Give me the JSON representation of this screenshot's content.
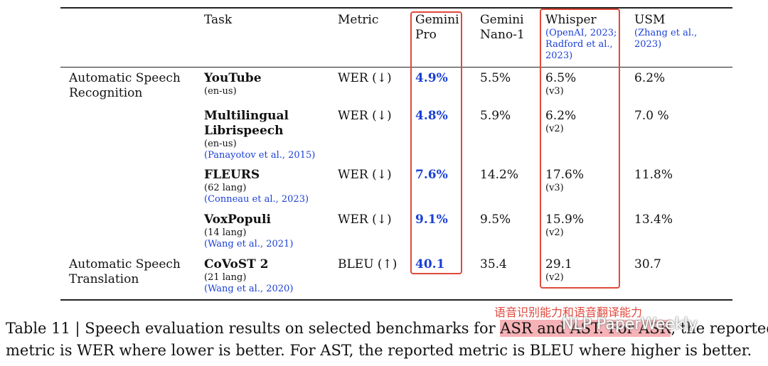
{
  "header": {
    "task": "Task",
    "metric": "Metric",
    "gemini_pro": [
      "Gemini",
      "Pro"
    ],
    "gemini_nano": [
      "Gemini",
      "Nano-1"
    ],
    "whisper": "Whisper",
    "whisper_cite": [
      "(OpenAI, 2023;",
      "Radford et al.,",
      "2023)"
    ],
    "usm": "USM",
    "usm_cite": [
      "(Zhang et al.,",
      "2023)"
    ]
  },
  "groups": [
    {
      "label": [
        "Automatic Speech",
        "Recognition"
      ]
    },
    {
      "label": [
        "Automatic Speech",
        "Translation"
      ]
    }
  ],
  "rows": [
    {
      "task": [
        "YouTube"
      ],
      "sub": "(en-us)",
      "cite": "",
      "metric": "WER (↓)",
      "gemini_pro": "4.9%",
      "gemini_nano": "5.5%",
      "whisper": "6.5%",
      "whisper_ver": "(v3)",
      "usm": "6.2%"
    },
    {
      "task": [
        "Multilingual",
        "Librispeech"
      ],
      "sub": "(en-us)",
      "cite": "(Panayotov et al., 2015)",
      "metric": "WER (↓)",
      "gemini_pro": "4.8%",
      "gemini_nano": "5.9%",
      "whisper": "6.2%",
      "whisper_ver": "(v2)",
      "usm": "7.0 %"
    },
    {
      "task": [
        "FLEURS"
      ],
      "sub": "(62 lang)",
      "cite": "(Conneau et al., 2023)",
      "metric": "WER (↓)",
      "gemini_pro": "7.6%",
      "gemini_nano": "14.2%",
      "whisper": "17.6%",
      "whisper_ver": "(v3)",
      "usm": "11.8%"
    },
    {
      "task": [
        "VoxPopuli"
      ],
      "sub": "(14 lang)",
      "cite": "(Wang et al., 2021)",
      "metric": "WER (↓)",
      "gemini_pro": "9.1%",
      "gemini_nano": "9.5%",
      "whisper": "15.9%",
      "whisper_ver": "(v2)",
      "usm": "13.4%"
    },
    {
      "task": [
        "CoVoST 2"
      ],
      "sub": "(21 lang)",
      "cite": "(Wang et al., 2020)",
      "metric": "BLEU (↑)",
      "gemini_pro": "40.1",
      "gemini_nano": "35.4",
      "whisper": "29.1",
      "whisper_ver": "(v2)",
      "usm": "30.7"
    }
  ],
  "caption": {
    "line1_a": "Table 11 | Speech evaluation results on selected benchmarks for ",
    "line1_hl": "ASR and AST. For ASR",
    "line1_b": ", the reported",
    "line2": "metric is WER where lower is better. For AST, the reported metric is BLEU where higher is better."
  },
  "annotation": "语音识别能力和语音翻译能力",
  "watermark": "NLP PaperWeekly",
  "colors": {
    "highlight_box": "#e04a3a",
    "link_blue": "#1a3fd6",
    "caption_highlight": "#f6b2b6"
  }
}
